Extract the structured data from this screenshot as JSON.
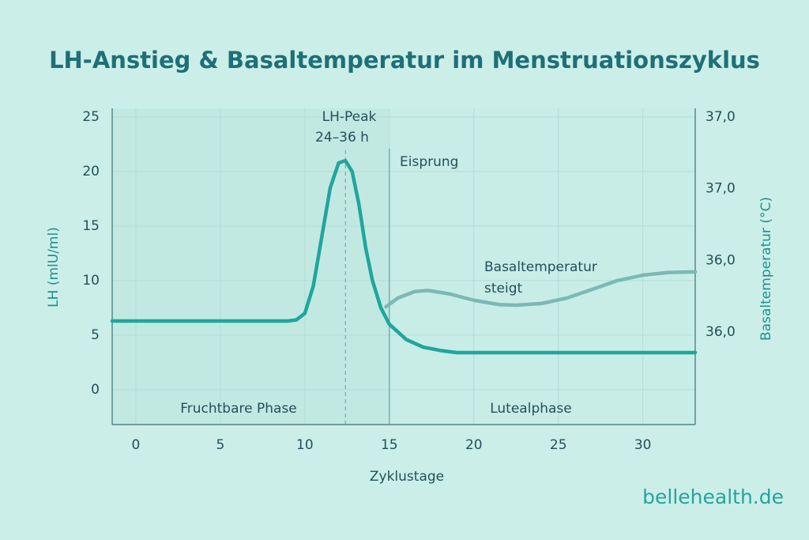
{
  "chart_data": {
    "type": "line",
    "title": "LH-Anstieg & Basaltemperatur im Menstruationszyklus",
    "xlabel": "Zyklustage",
    "ylabel": "LH (mlU/ml)",
    "y2label": "Basaltemperatur (°C)",
    "xlim": [
      -1.4,
      33.1
    ],
    "xticks": [
      0,
      5,
      10,
      15,
      20,
      25,
      30
    ],
    "ylim": [
      -3.2,
      25.8
    ],
    "yticks": [
      0,
      5,
      10,
      15,
      20,
      25
    ],
    "y2_tick_labels": [
      "37,0",
      "37,0",
      "36,0",
      "36,0"
    ],
    "grid": true,
    "series": [
      {
        "name": "LH",
        "color": "#1fa69d",
        "x": [
          -1.4,
          0,
          5,
          9,
          9.5,
          10,
          10.5,
          11,
          11.5,
          12,
          12.4,
          12.8,
          13.2,
          13.6,
          14,
          14.5,
          15,
          16,
          17,
          18,
          19,
          20,
          25,
          30,
          33.1
        ],
        "values": [
          6.3,
          6.3,
          6.3,
          6.3,
          6.4,
          7,
          9.5,
          14,
          18.5,
          20.8,
          21,
          20,
          17,
          13,
          10,
          7.5,
          6,
          4.6,
          3.9,
          3.6,
          3.4,
          3.4,
          3.4,
          3.4,
          3.4
        ]
      },
      {
        "name": "Basaltemperatur",
        "color": "#7db8b5",
        "x": [
          14.8,
          15.5,
          16.5,
          17.3,
          18.5,
          20,
          21.5,
          22.5,
          24,
          25.5,
          27,
          28.5,
          30,
          31.5,
          33.1
        ],
        "values": [
          7.6,
          8.4,
          9.0,
          9.1,
          8.8,
          8.2,
          7.8,
          7.75,
          7.9,
          8.4,
          9.2,
          10.0,
          10.5,
          10.75,
          10.8
        ]
      }
    ],
    "annotations": [
      {
        "text": "LH-Peak",
        "x": 12.4
      },
      {
        "text": "24–36 h",
        "x": 12.4
      },
      {
        "text": "Eisprung",
        "x": 15
      },
      {
        "text": "Basaltemperatur",
        "x": 20
      },
      {
        "text": "steigt",
        "x": 20
      },
      {
        "text": "Fruchtbare Phase",
        "x": 7
      },
      {
        "text": "Lutealphase",
        "x": 24
      }
    ],
    "source": "bellehealth.de"
  }
}
